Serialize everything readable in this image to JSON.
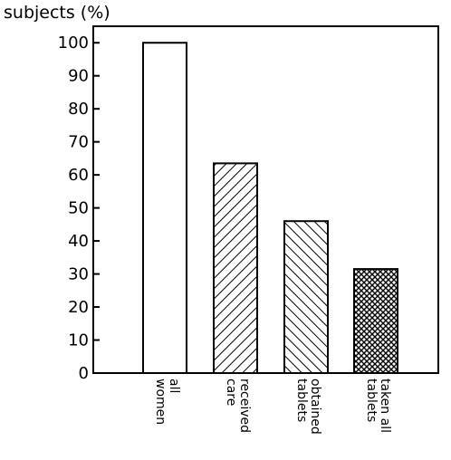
{
  "chart_data": {
    "type": "bar",
    "ylabel": "subjects (%)",
    "xlabel": "",
    "ylim": [
      0,
      105
    ],
    "yticks": [
      0,
      10,
      20,
      30,
      40,
      50,
      60,
      70,
      80,
      90,
      100
    ],
    "categories": [
      [
        "all",
        "women"
      ],
      [
        "received",
        "care"
      ],
      [
        "obtained",
        "tablets"
      ],
      [
        "taken all",
        "tablets"
      ]
    ],
    "values": [
      100,
      63.5,
      46,
      31.5
    ],
    "fills": [
      "none",
      "hatch-forward",
      "hatch-backward",
      "crosshatch"
    ],
    "grid": false,
    "legend": "none",
    "colors": {
      "stroke": "#000000",
      "background": "#ffffff"
    }
  }
}
